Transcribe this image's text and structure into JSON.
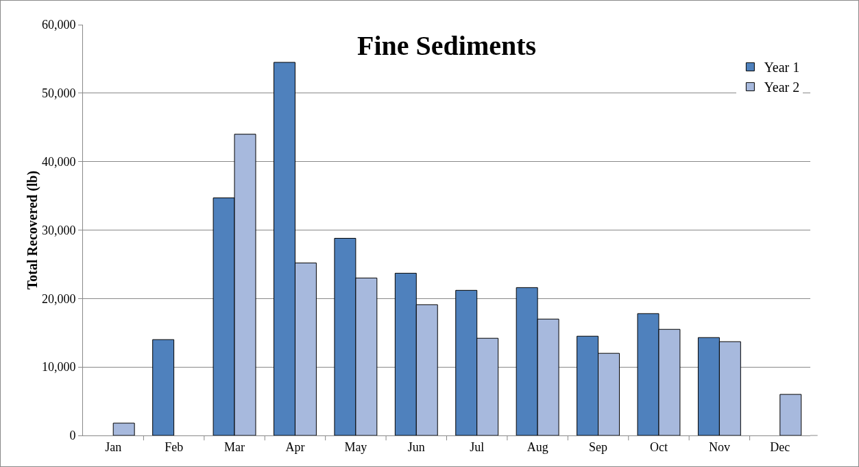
{
  "chart_data": {
    "type": "bar",
    "title": "Fine Sediments",
    "ylabel": "Total Recovered (lb)",
    "categories": [
      "Jan",
      "Feb",
      "Mar",
      "Apr",
      "May",
      "Jun",
      "Jul",
      "Aug",
      "Sep",
      "Oct",
      "Nov",
      "Dec"
    ],
    "series": [
      {
        "name": "Year 1",
        "color": "#4f81bd",
        "values": [
          null,
          14000,
          34700,
          54500,
          28800,
          23700,
          21200,
          21600,
          14500,
          17800,
          14300,
          null
        ]
      },
      {
        "name": "Year 2",
        "color": "#a7b9dd",
        "values": [
          1800,
          null,
          44000,
          25200,
          23000,
          19100,
          14200,
          17000,
          12000,
          15500,
          13700,
          6000
        ]
      }
    ],
    "ylim": [
      0,
      60000
    ],
    "yticks": [
      {
        "value": 0,
        "label": "0"
      },
      {
        "value": 10000,
        "label": "10,000"
      },
      {
        "value": 20000,
        "label": "20,000"
      },
      {
        "value": 30000,
        "label": "30,000"
      },
      {
        "value": 40000,
        "label": "40,000"
      },
      {
        "value": 50000,
        "label": "50,000"
      },
      {
        "value": 60000,
        "label": "60,000"
      }
    ],
    "grid": "y",
    "legend": "top right"
  }
}
